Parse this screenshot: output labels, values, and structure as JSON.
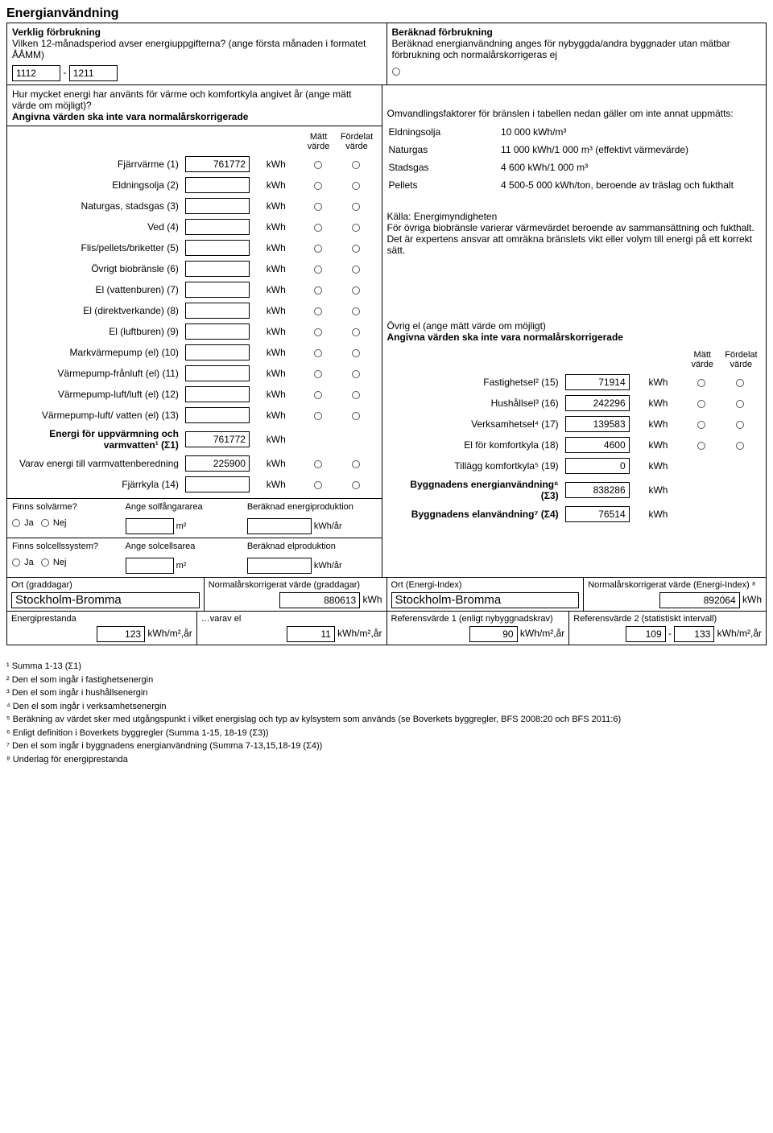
{
  "title": "Energianvändning",
  "left_header": {
    "sub1": "Verklig förbrukning",
    "q": "Vilken 12-månadsperiod avser energiuppgifterna? (ange första månaden i formatet ÅÅMM)",
    "from": "1112",
    "to": "1211"
  },
  "right_header": {
    "sub1": "Beräknad förbrukning",
    "q": "Beräknad energianvändning anges för nybyggda/andra byggnader utan mätbar förbrukning och normalårskorrigeras ej"
  },
  "block2_q": "Hur mycket energi har använts för värme och komfortkyla angivet år (ange mätt värde om möjligt)?",
  "block2_note": "Angivna värden ska inte vara normalårskorrigerade",
  "col_matt": "Mätt värde",
  "col_fordelat": "Fördelat värde",
  "rows": [
    {
      "label": "Fjärrvärme (1)",
      "value": "761772"
    },
    {
      "label": "Eldningsolja (2)",
      "value": ""
    },
    {
      "label": "Naturgas, stadsgas (3)",
      "value": ""
    },
    {
      "label": "Ved (4)",
      "value": ""
    },
    {
      "label": "Flis/pellets/briketter (5)",
      "value": ""
    },
    {
      "label": "Övrigt biobränsle (6)",
      "value": ""
    },
    {
      "label": "El (vattenburen) (7)",
      "value": ""
    },
    {
      "label": "El (direktverkande) (8)",
      "value": ""
    },
    {
      "label": "El (luftburen) (9)",
      "value": ""
    },
    {
      "label": "Markvärmepump (el) (10)",
      "value": ""
    },
    {
      "label": "Värmepump-frånluft (el) (11)",
      "value": ""
    },
    {
      "label": "Värmepump-luft/luft (el) (12)",
      "value": ""
    },
    {
      "label": "Värmepump-luft/ vatten (el) (13)",
      "value": ""
    }
  ],
  "sum1_label": "Energi för uppvärmning och varmvatten¹ (Σ1)",
  "sum1_value": "761772",
  "vv_label": "Varav energi till varmvattenberedning",
  "vv_value": "225900",
  "fjarrkyla_label": "Fjärrkyla (14)",
  "fjarrkyla_value": "",
  "conv_intro": "Omvandlingsfaktorer för bränslen i tabellen nedan gäller om inte annat uppmätts:",
  "conv": [
    {
      "k": "Eldningsolja",
      "v": "10 000 kWh/m³"
    },
    {
      "k": "Naturgas",
      "v": "11 000 kWh/1 000 m³ (effektivt värmevärde)"
    },
    {
      "k": "Stadsgas",
      "v": "4 600 kWh/1 000 m³"
    },
    {
      "k": "Pellets",
      "v": "4 500-5 000 kWh/ton, beroende av träslag och fukthalt"
    }
  ],
  "source": "Källa: Energimyndigheten",
  "source_note": "För övriga biobränsle varierar värmevärdet beroende av sammansättning och fukthalt. Det är expertens ansvar att omräkna bränslets vikt eller volym till energi på ett korrekt sätt.",
  "ovrigel_title": "Övrig el (ange mätt värde om möjligt)",
  "ovrigel_note": "Angivna värden ska inte vara normalårskorrigerade",
  "ovrigel_rows": [
    {
      "label": "Fastighetsel² (15)",
      "value": "71914",
      "radios": true
    },
    {
      "label": "Hushållsel³ (16)",
      "value": "242296",
      "radios": true
    },
    {
      "label": "Verksamhetsel⁴ (17)",
      "value": "139583",
      "radios": true
    },
    {
      "label": "El för komfortkyla (18)",
      "value": "4600",
      "radios": true
    },
    {
      "label": "Tillägg komfortkyla⁵ (19)",
      "value": "0",
      "radios": false
    },
    {
      "label": "Byggnadens energianvändning⁶ (Σ3)",
      "value": "838286",
      "radios": false,
      "bold": true
    },
    {
      "label": "Byggnadens elanvändning⁷ (Σ4)",
      "value": "76514",
      "radios": false,
      "bold": true
    }
  ],
  "sol_q": "Finns solvärme?",
  "sol_area_label": "Ange solfångararea",
  "sol_prod_label": "Beräknad energiproduktion",
  "solcell_q": "Finns solcellssystem?",
  "solcell_area_label": "Ange solcellsarea",
  "solcell_prod_label": "Beräknad elproduktion",
  "yes": "Ja",
  "no": "Nej",
  "unit_m2": "m²",
  "unit_kwhyr": "kWh/år",
  "unit_kwh": "kWh",
  "ort1_label": "Ort (graddagar)",
  "ort1_val": "Stockholm-Bromma",
  "norm1_label": "Normalårskorrigerat värde (graddagar)",
  "norm1_val": "880613",
  "ort2_label": "Ort (Energi-Index)",
  "ort2_val": "Stockholm-Bromma",
  "norm2_label": "Normalårskorrigerat värde (Energi-Index) ⁸",
  "norm2_val": "892064",
  "ep_label": "Energiprestanda",
  "ep_val": "123",
  "varav_label": "…varav el",
  "varav_val": "11",
  "ref1_label": "Referensvärde 1 (enligt nybyggnadskrav)",
  "ref1_val": "90",
  "ref2_label": "Referensvärde 2 (statistiskt intervall)",
  "ref2_from": "109",
  "ref2_to": "133",
  "unit_ep": "kWh/m²,år",
  "fn": [
    "¹ Summa 1-13 (Σ1)",
    "² Den el som ingår i fastighetsenergin",
    "³ Den el som ingår i hushållsenergin",
    "⁴ Den el som ingår i verksamhetsenergin",
    "⁵ Beräkning av värdet sker med utgångspunkt i vilket energislag och typ av kylsystem som används (se Boverkets byggregler, BFS 2008:20 och BFS 2011:6)",
    "⁶ Enligt definition i Boverkets byggregler (Summa 1-15, 18-19 (Σ3))",
    "⁷ Den el som ingår i byggnadens energianvändning (Summa 7-13,15,18-19 (Σ4))",
    "⁸ Underlag för energiprestanda"
  ]
}
